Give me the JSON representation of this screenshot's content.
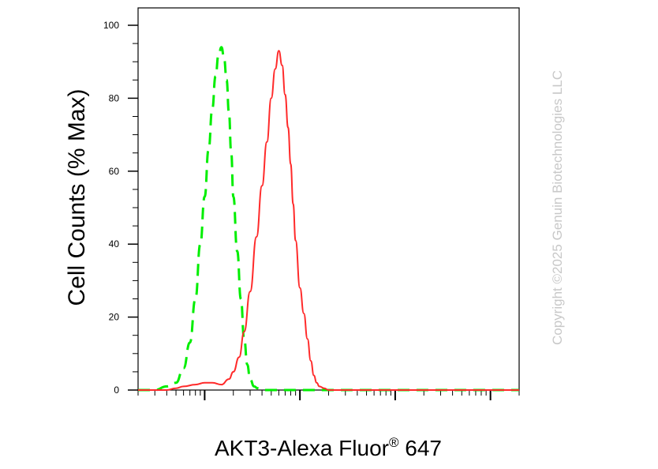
{
  "chart_data": {
    "type": "line",
    "title": "",
    "xlabel": "AKT3-Alexa Fluor",
    "xlabel_superscript": "®",
    "xlabel_suffix": " 647",
    "ylabel": "Cell Counts (% Max)",
    "x_scale": "log",
    "xlim": [
      0.2,
      2000
    ],
    "ylim": [
      0,
      105
    ],
    "y_ticks": [
      0,
      20,
      40,
      60,
      80,
      100
    ],
    "y_tick_labels": [
      "0",
      "20",
      "40",
      "60",
      "80",
      "100"
    ],
    "x_tick_labels_shown": false,
    "grid": false,
    "legend": "none",
    "watermark": "Copyright ©2025 Genuin Biotechnologies LLC",
    "series": [
      {
        "color": "#00ee00",
        "style": "dashed",
        "x": [
          0.2,
          0.3,
          0.4,
          0.5,
          0.6,
          0.7,
          0.8,
          0.9,
          1.0,
          1.1,
          1.2,
          1.3,
          1.4,
          1.5,
          1.6,
          1.7,
          1.8,
          1.9,
          2.0,
          2.2,
          2.4,
          2.6,
          2.8,
          3.0,
          3.3,
          3.6,
          4.0,
          5.0,
          7.0,
          10,
          20,
          50,
          100,
          300,
          1000,
          2000
        ],
        "values": [
          0,
          0,
          1,
          2,
          6,
          13,
          25,
          40,
          53,
          66,
          77,
          86,
          92,
          94,
          91,
          85,
          76,
          65,
          53,
          38,
          25,
          14,
          7,
          3,
          1,
          0.5,
          0,
          0,
          0,
          0,
          0,
          0,
          0,
          0,
          0,
          0
        ]
      },
      {
        "color": "#ff2a2a",
        "style": "solid",
        "x": [
          0.2,
          0.3,
          0.4,
          0.5,
          0.6,
          0.8,
          1.0,
          1.2,
          1.5,
          1.8,
          2.0,
          2.3,
          2.6,
          3.0,
          3.5,
          4.0,
          4.5,
          5.0,
          5.5,
          6.0,
          6.5,
          7.0,
          7.5,
          8.0,
          8.5,
          9.0,
          10,
          11,
          12,
          13,
          14,
          15,
          16,
          18,
          20,
          25,
          30,
          40,
          60,
          100,
          200,
          500,
          1000,
          2000
        ],
        "values": [
          0,
          0,
          0,
          0.5,
          1,
          1.5,
          2,
          2,
          1.5,
          3,
          5,
          9,
          16,
          27,
          42,
          56,
          68,
          80,
          88,
          93,
          89,
          81,
          72,
          62,
          51,
          41,
          28,
          21,
          14,
          8,
          4,
          2,
          1,
          0.5,
          0,
          0,
          0,
          0,
          0,
          0,
          0,
          0,
          0,
          0
        ]
      }
    ]
  }
}
